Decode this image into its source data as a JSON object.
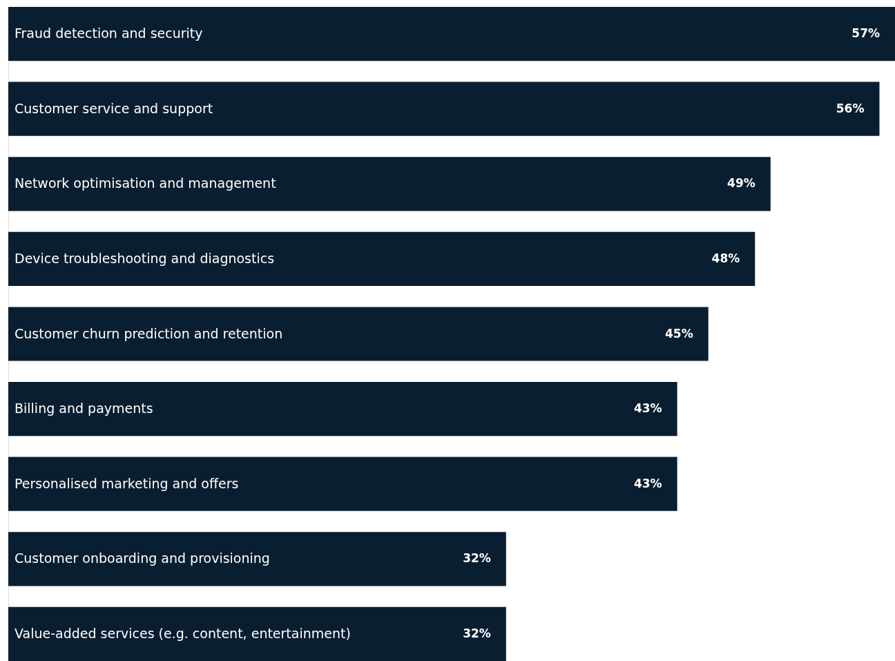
{
  "chart_data": {
    "type": "bar",
    "orientation": "horizontal",
    "color": "#0a1e31",
    "categories": [
      "Fraud detection and security",
      "Customer service and support",
      "Network optimisation and management",
      "Device troubleshooting and diagnostics",
      "Customer churn prediction and retention",
      "Billing and payments",
      "Personalised marketing and offers",
      "Customer onboarding and provisioning",
      "Value-added services (e.g. content, entertainment)"
    ],
    "values": [
      57,
      56,
      49,
      48,
      45,
      43,
      43,
      32,
      32
    ],
    "value_labels": [
      "57%",
      "56%",
      "49%",
      "48%",
      "45%",
      "43%",
      "43%",
      "32%",
      "32%"
    ],
    "grid": false
  }
}
